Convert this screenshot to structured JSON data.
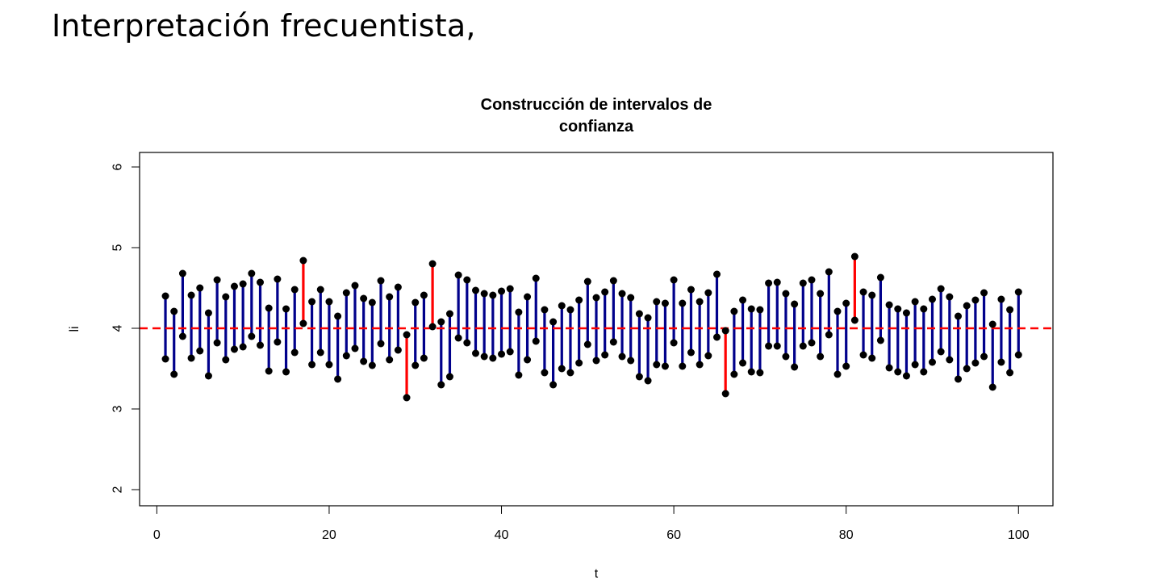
{
  "slide": {
    "title": "Interpretación frecuentista,"
  },
  "chart_data": {
    "type": "interval",
    "title_lines": [
      "Construcción de intervalos de",
      "confianza"
    ],
    "xlabel": "t",
    "ylabel": "li",
    "xlim": [
      -2,
      104
    ],
    "ylim": [
      1.8,
      6.18
    ],
    "xticks": [
      0,
      20,
      40,
      60,
      80,
      100
    ],
    "yticks": [
      2,
      3,
      4,
      5,
      6
    ],
    "reference_line": {
      "y": 4,
      "color": "#ff0000",
      "style": "dashed"
    },
    "colors": {
      "covers": "#00008b",
      "misses": "#ff0000",
      "endpoint": "#000000"
    },
    "t": [
      1,
      2,
      3,
      4,
      5,
      6,
      7,
      8,
      9,
      10,
      11,
      12,
      13,
      14,
      15,
      16,
      17,
      18,
      19,
      20,
      21,
      22,
      23,
      24,
      25,
      26,
      27,
      28,
      29,
      30,
      31,
      32,
      33,
      34,
      35,
      36,
      37,
      38,
      39,
      40,
      41,
      42,
      43,
      44,
      45,
      46,
      47,
      48,
      49,
      50,
      51,
      52,
      53,
      54,
      55,
      56,
      57,
      58,
      59,
      60,
      61,
      62,
      63,
      64,
      65,
      66,
      67,
      68,
      69,
      70,
      71,
      72,
      73,
      74,
      75,
      76,
      77,
      78,
      79,
      80,
      81,
      82,
      83,
      84,
      85,
      86,
      87,
      88,
      89,
      90,
      91,
      92,
      93,
      94,
      95,
      96,
      97,
      98,
      99,
      100
    ],
    "lower": [
      3.62,
      3.43,
      3.9,
      3.63,
      3.72,
      3.41,
      3.82,
      3.61,
      3.74,
      3.77,
      3.9,
      3.79,
      3.47,
      3.83,
      3.46,
      3.7,
      4.06,
      3.55,
      3.7,
      3.55,
      3.37,
      3.66,
      3.75,
      3.59,
      3.54,
      3.81,
      3.61,
      3.73,
      3.14,
      3.54,
      3.63,
      4.02,
      3.3,
      3.4,
      3.88,
      3.82,
      3.69,
      3.65,
      3.63,
      3.68,
      3.71,
      3.42,
      3.61,
      3.84,
      3.45,
      3.3,
      3.5,
      3.45,
      3.57,
      3.8,
      3.6,
      3.67,
      3.83,
      3.65,
      3.6,
      3.4,
      3.35,
      3.55,
      3.53,
      3.82,
      3.53,
      3.7,
      3.55,
      3.66,
      3.89,
      3.19,
      3.43,
      3.57,
      3.46,
      3.45,
      3.78,
      3.78,
      3.65,
      3.52,
      3.78,
      3.82,
      3.65,
      3.92,
      3.43,
      3.53,
      4.1,
      3.67,
      3.63,
      3.85,
      3.51,
      3.46,
      3.41,
      3.55,
      3.46,
      3.58,
      3.71,
      3.61,
      3.37,
      3.5,
      3.57,
      3.65,
      3.27,
      3.58,
      3.45,
      3.67
    ],
    "upper": [
      4.4,
      4.21,
      4.68,
      4.41,
      4.5,
      4.19,
      4.6,
      4.39,
      4.52,
      4.55,
      4.68,
      4.57,
      4.25,
      4.61,
      4.24,
      4.48,
      4.84,
      4.33,
      4.48,
      4.33,
      4.15,
      4.44,
      4.53,
      4.37,
      4.32,
      4.59,
      4.39,
      4.51,
      3.92,
      4.32,
      4.41,
      4.8,
      4.08,
      4.18,
      4.66,
      4.6,
      4.47,
      4.43,
      4.41,
      4.46,
      4.49,
      4.2,
      4.39,
      4.62,
      4.23,
      4.08,
      4.28,
      4.23,
      4.35,
      4.58,
      4.38,
      4.45,
      4.59,
      4.43,
      4.38,
      4.18,
      4.13,
      4.33,
      4.31,
      4.6,
      4.31,
      4.48,
      4.33,
      4.44,
      4.67,
      3.97,
      4.21,
      4.35,
      4.24,
      4.23,
      4.56,
      4.57,
      4.43,
      4.3,
      4.56,
      4.6,
      4.43,
      4.7,
      4.21,
      4.31,
      4.89,
      4.45,
      4.41,
      4.63,
      4.29,
      4.24,
      4.19,
      4.33,
      4.24,
      4.36,
      4.49,
      4.39,
      4.15,
      4.28,
      4.35,
      4.44,
      4.05,
      4.36,
      4.23,
      4.45
    ]
  }
}
